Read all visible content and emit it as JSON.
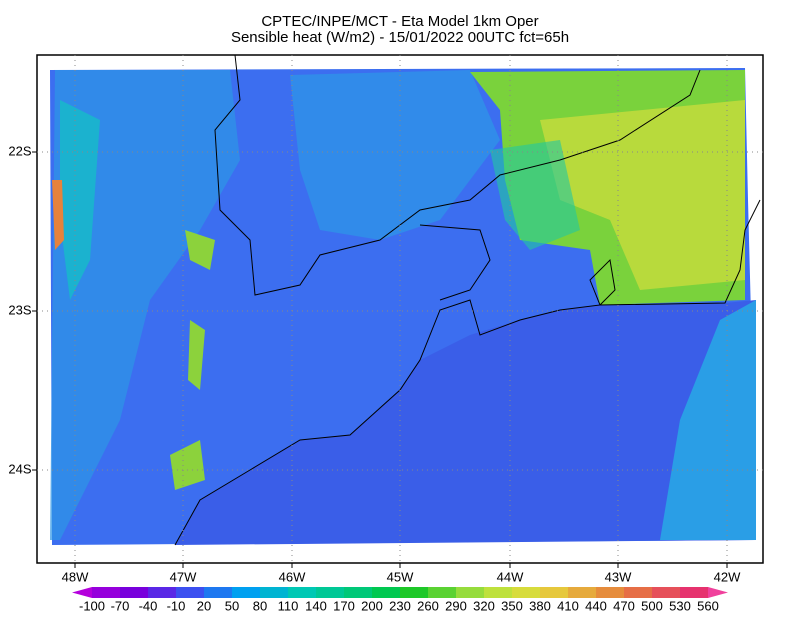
{
  "title": {
    "line1": "CPTEC/INPE/MCT -  Eta Model 1km Oper",
    "line2": "Sensible heat (W/m2) - 15/01/2022 00UTC fct=65h"
  },
  "map": {
    "lat_labels": [
      "22S",
      "23S",
      "24S"
    ],
    "lon_labels": [
      "48W",
      "47W",
      "46W",
      "45W",
      "44W",
      "43W",
      "42W"
    ]
  },
  "colorbar": {
    "labels": [
      "-100",
      "-70",
      "-40",
      "-10",
      "20",
      "50",
      "80",
      "110",
      "140",
      "170",
      "200",
      "230",
      "260",
      "290",
      "320",
      "350",
      "380",
      "410",
      "440",
      "470",
      "500",
      "530",
      "560"
    ],
    "colors": [
      "#b400dc",
      "#9600dc",
      "#7800dc",
      "#5a28e6",
      "#3c50f0",
      "#1e78f0",
      "#00a0f0",
      "#00b4d2",
      "#00c8b4",
      "#00c896",
      "#00c878",
      "#00c850",
      "#1ec828",
      "#5ad232",
      "#96dc3c",
      "#bee13c",
      "#d7dc3c",
      "#e6c83c",
      "#e6aa3c",
      "#e68c3c",
      "#e66e46",
      "#e6505a",
      "#e6326e",
      "#f0409c"
    ]
  }
}
